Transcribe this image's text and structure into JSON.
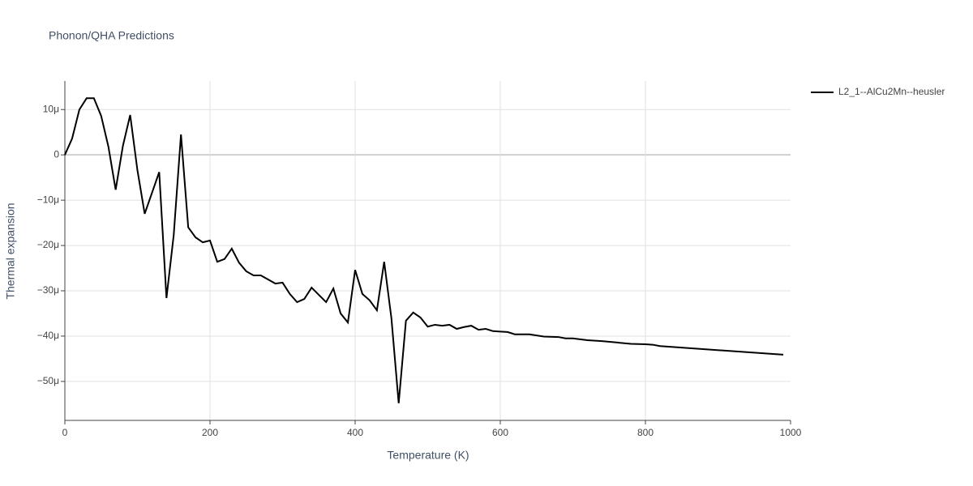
{
  "chart_data": {
    "type": "line",
    "title": "Phonon/QHA Predictions",
    "x_label": "Temperature (K)",
    "y_label": "Thermal expansion",
    "x": [
      0,
      10,
      20,
      30,
      40,
      50,
      60,
      70,
      80,
      90,
      100,
      110,
      120,
      130,
      140,
      150,
      160,
      170,
      180,
      190,
      200,
      210,
      220,
      230,
      240,
      250,
      260,
      270,
      280,
      290,
      300,
      310,
      320,
      330,
      340,
      350,
      360,
      370,
      380,
      390,
      400,
      410,
      420,
      430,
      440,
      450,
      460,
      470,
      480,
      490,
      500,
      510,
      520,
      530,
      540,
      550,
      560,
      570,
      580,
      590,
      600,
      610,
      620,
      640,
      660,
      680,
      690,
      700,
      720,
      740,
      760,
      780,
      800,
      810,
      820,
      990
    ],
    "series": [
      {
        "name": "L2_1--AlCu2Mn--heusler",
        "color": "#000000",
        "values": [
          0,
          3.6,
          10,
          12.5,
          12.5,
          8.6,
          1.8,
          -7.7,
          2,
          8.8,
          -3.4,
          -13,
          -8.4,
          -3.8,
          -31.6,
          -17.7,
          4.5,
          -16,
          -18.2,
          -19.3,
          -18.9,
          -23.6,
          -23,
          -20.7,
          -23.8,
          -25.7,
          -26.6,
          -26.6,
          -27.5,
          -28.4,
          -28.2,
          -30.7,
          -32.5,
          -31.8,
          -29.3,
          -30.9,
          -32.5,
          -29.5,
          -35,
          -37,
          -25.4,
          -30.7,
          -32.1,
          -34.3,
          -23.6,
          -36.1,
          -54.8,
          -36.6,
          -34.8,
          -35.9,
          -37.9,
          -37.5,
          -37.7,
          -37.5,
          -38.4,
          -38,
          -37.7,
          -38.6,
          -38.4,
          -38.9,
          -39,
          -39.1,
          -39.6,
          -39.6,
          -40.1,
          -40.2,
          -40.5,
          -40.5,
          -40.9,
          -41.1,
          -41.4,
          -41.7,
          -41.8,
          -41.9,
          -42.2,
          -44.1
        ]
      }
    ],
    "xlim": [
      0,
      1000
    ],
    "xticks": [
      0,
      200,
      400,
      600,
      800,
      1000
    ],
    "ylim": [
      -58.6,
      16.3
    ],
    "yticks": [
      {
        "value": -50,
        "label": "−50μ"
      },
      {
        "value": -40,
        "label": "−40μ"
      },
      {
        "value": -30,
        "label": "−30μ"
      },
      {
        "value": -20,
        "label": "−20μ"
      },
      {
        "value": -10,
        "label": "−10μ"
      },
      0,
      {
        "value": 10,
        "label": "10μ"
      }
    ],
    "grid": true,
    "legend_position": "top-right"
  }
}
